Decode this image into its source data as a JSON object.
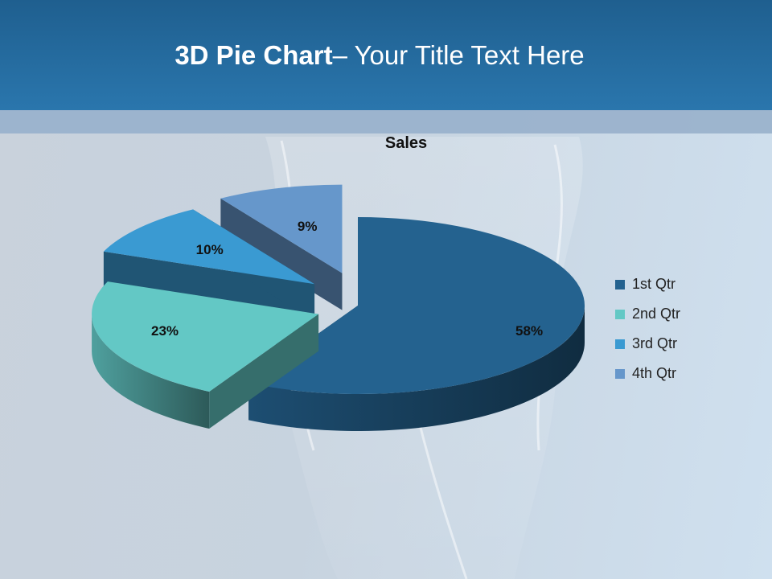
{
  "slide": {
    "title_bold": "3D Pie Chart",
    "title_rest": "– Your Title Text Here"
  },
  "chart_data": {
    "type": "pie",
    "style": "3d-exploded",
    "title": "Sales",
    "categories": [
      "1st Qtr",
      "2nd Qtr",
      "3rd Qtr",
      "4th Qtr"
    ],
    "values": [
      58,
      23,
      10,
      9
    ],
    "labels": [
      "58%",
      "23%",
      "10%",
      "9%"
    ],
    "colors": [
      "#24628f",
      "#63c8c5",
      "#3a9ad2",
      "#6697cb"
    ],
    "legend_position": "right"
  }
}
